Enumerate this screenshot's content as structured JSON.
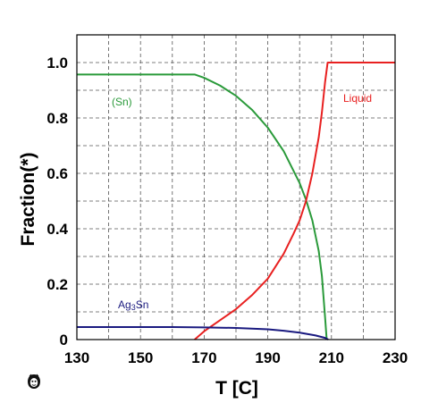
{
  "chart_data": {
    "type": "line",
    "xlabel": "T [C]",
    "ylabel": "Fraction(*)",
    "xlim": [
      130,
      230
    ],
    "ylim": [
      0,
      1.1
    ],
    "x_ticks": [
      "130",
      "150",
      "170",
      "190",
      "210",
      "230"
    ],
    "y_ticks": [
      "0",
      "0.2",
      "0.4",
      "0.6",
      "0.8",
      "1.0"
    ],
    "grid": true,
    "grid_style": "dashed",
    "series": [
      {
        "name": "(Sn)",
        "color": "#2a9a3a",
        "points": [
          [
            130,
            0.957
          ],
          [
            167,
            0.957
          ],
          [
            170,
            0.945
          ],
          [
            175,
            0.917
          ],
          [
            180,
            0.88
          ],
          [
            185,
            0.83
          ],
          [
            190,
            0.765
          ],
          [
            195,
            0.68
          ],
          [
            200,
            0.565
          ],
          [
            202,
            0.505
          ],
          [
            204,
            0.43
          ],
          [
            206,
            0.32
          ],
          [
            207,
            0.23
          ],
          [
            208,
            0.08
          ],
          [
            208.5,
            0.0
          ]
        ]
      },
      {
        "name": "Liquid",
        "color": "#e82020",
        "points": [
          [
            167,
            0.0
          ],
          [
            170,
            0.03
          ],
          [
            175,
            0.07
          ],
          [
            180,
            0.11
          ],
          [
            185,
            0.16
          ],
          [
            190,
            0.22
          ],
          [
            195,
            0.31
          ],
          [
            198,
            0.38
          ],
          [
            200,
            0.43
          ],
          [
            202,
            0.5
          ],
          [
            204,
            0.6
          ],
          [
            206,
            0.73
          ],
          [
            207,
            0.82
          ],
          [
            208,
            0.93
          ],
          [
            208.8,
            1.0
          ],
          [
            230,
            1.0
          ]
        ]
      },
      {
        "name": "Ag3Sn",
        "color": "#1a1a80",
        "points": [
          [
            130,
            0.045
          ],
          [
            160,
            0.045
          ],
          [
            170,
            0.044
          ],
          [
            180,
            0.042
          ],
          [
            190,
            0.037
          ],
          [
            195,
            0.032
          ],
          [
            200,
            0.025
          ],
          [
            205,
            0.015
          ],
          [
            208,
            0.006
          ],
          [
            209,
            0.0
          ]
        ]
      }
    ]
  },
  "labels": {
    "sn": "(Sn)",
    "liquid": "Liquid",
    "ag3sn_main": "Ag",
    "ag3sn_sub": "3",
    "ag3sn_tail": "Sn"
  },
  "colors": {
    "sn": "#2a9a3a",
    "liquid": "#e82020",
    "ag3sn": "#1a1a80",
    "grid": "#555555",
    "axis": "#000000"
  },
  "logo": "thermocalc-logo-icon"
}
